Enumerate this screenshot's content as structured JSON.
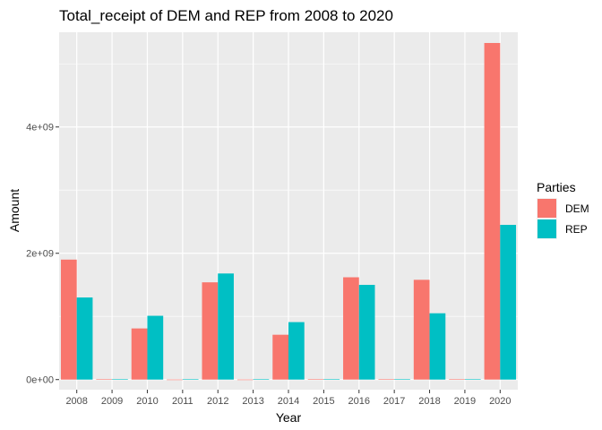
{
  "chart_data": {
    "type": "bar",
    "title": "Total_receipt of DEM and REP from 2008 to 2020",
    "xlabel": "Year",
    "ylabel": "Amount",
    "categories": [
      "2008",
      "2009",
      "2010",
      "2011",
      "2012",
      "2013",
      "2014",
      "2015",
      "2016",
      "2017",
      "2018",
      "2019",
      "2020"
    ],
    "series": [
      {
        "name": "DEM",
        "color": "#F8766D",
        "values": [
          1900000000,
          8000000,
          810000000,
          1000000,
          1540000000,
          1000000,
          710000000,
          8000000,
          1620000000,
          8000000,
          1580000000,
          8000000,
          5330000000
        ]
      },
      {
        "name": "REP",
        "color": "#00BFC4",
        "values": [
          1300000000,
          8000000,
          1010000000,
          8000000,
          1680000000,
          8000000,
          910000000,
          8000000,
          1500000000,
          8000000,
          1050000000,
          8000000,
          2450000000
        ]
      }
    ],
    "ylim": [
      -160000000,
      5500000000
    ],
    "yticks": [
      0,
      2000000000,
      4000000000
    ],
    "ytick_labels": [
      "0e+00",
      "2e+09",
      "4e+09"
    ],
    "grid": true,
    "legend": {
      "title": "Parties",
      "position": "right"
    },
    "panel_background": "#EBEBEB",
    "grid_color": "#FFFFFF"
  }
}
